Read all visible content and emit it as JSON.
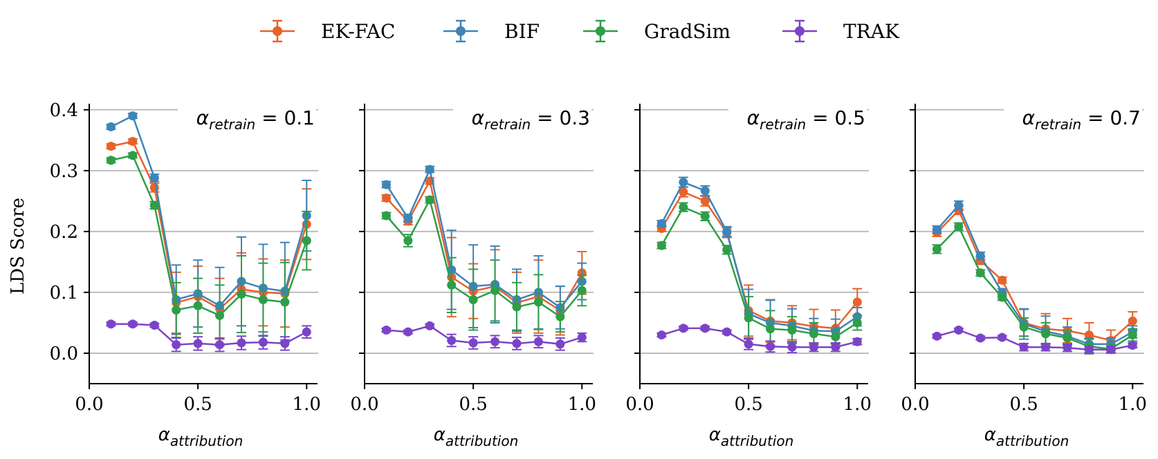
{
  "chart_data": {
    "type": "line",
    "ylabel": "LDS Score",
    "ylim": [
      -0.05,
      0.41
    ],
    "yticks": [
      0.0,
      0.1,
      0.2,
      0.3,
      0.4
    ],
    "ytick_labels": [
      "0.0",
      "0.1",
      "0.2",
      "0.3",
      "0.4"
    ],
    "xlim": [
      0.0,
      1.05
    ],
    "xticks": [
      0.0,
      0.5,
      1.0
    ],
    "xtick_labels": [
      "0.0",
      "0.5",
      "1.0"
    ],
    "xlabel": {
      "base": "α",
      "sub": "attribution"
    },
    "x": [
      0.1,
      0.2,
      0.3,
      0.4,
      0.5,
      0.6,
      0.7,
      0.8,
      0.9,
      1.0
    ],
    "legend": {
      "position": "top-center",
      "entries": [
        {
          "name": "EK-FAC",
          "color": "#e8622a"
        },
        {
          "name": "BIF",
          "color": "#3d84b8"
        },
        {
          "name": "GradSim",
          "color": "#2e9e48"
        },
        {
          "name": "TRAK",
          "color": "#7b44c8"
        }
      ]
    },
    "panels": [
      {
        "annotation": {
          "base": "α",
          "sub": "retrain",
          "eq": " = 0.1"
        },
        "series": [
          {
            "name": "EK-FAC",
            "values": [
              0.34,
              0.348,
              0.272,
              0.083,
              0.093,
              0.073,
              0.105,
              0.1,
              0.098,
              0.212
            ],
            "errors": [
              0.004,
              0.004,
              0.007,
              0.05,
              0.05,
              0.05,
              0.06,
              0.055,
              0.055,
              0.058
            ]
          },
          {
            "name": "BIF",
            "values": [
              0.372,
              0.39,
              0.288,
              0.088,
              0.098,
              0.078,
              0.118,
              0.107,
              0.102,
              0.226
            ],
            "errors": [
              0.004,
              0.004,
              0.006,
              0.057,
              0.055,
              0.063,
              0.073,
              0.072,
              0.08,
              0.058
            ]
          },
          {
            "name": "GradSim",
            "values": [
              0.317,
              0.325,
              0.243,
              0.071,
              0.078,
              0.062,
              0.097,
              0.088,
              0.084,
              0.185
            ],
            "errors": [
              0.004,
              0.004,
              0.006,
              0.045,
              0.045,
              0.05,
              0.063,
              0.06,
              0.065,
              0.048
            ]
          },
          {
            "name": "TRAK",
            "values": [
              0.048,
              0.048,
              0.046,
              0.014,
              0.016,
              0.014,
              0.017,
              0.018,
              0.016,
              0.035
            ],
            "errors": [
              0.003,
              0.003,
              0.003,
              0.011,
              0.011,
              0.011,
              0.011,
              0.011,
              0.011,
              0.01
            ]
          }
        ]
      },
      {
        "annotation": {
          "base": "α",
          "sub": "retrain",
          "eq": " = 0.3"
        },
        "series": [
          {
            "name": "EK-FAC",
            "values": [
              0.255,
              0.217,
              0.283,
              0.125,
              0.102,
              0.11,
              0.083,
              0.093,
              0.07,
              0.132
            ],
            "errors": [
              0.005,
              0.006,
              0.005,
              0.065,
              0.045,
              0.06,
              0.05,
              0.06,
              0.04,
              0.035
            ]
          },
          {
            "name": "BIF",
            "values": [
              0.277,
              0.222,
              0.302,
              0.137,
              0.11,
              0.113,
              0.088,
              0.1,
              0.075,
              0.118
            ],
            "errors": [
              0.005,
              0.006,
              0.005,
              0.065,
              0.068,
              0.063,
              0.05,
              0.06,
              0.035,
              0.03
            ]
          },
          {
            "name": "GradSim",
            "values": [
              0.226,
              0.185,
              0.252,
              0.112,
              0.088,
              0.103,
              0.076,
              0.084,
              0.06,
              0.103
            ],
            "errors": [
              0.005,
              0.01,
              0.005,
              0.045,
              0.05,
              0.05,
              0.04,
              0.045,
              0.025,
              0.025
            ]
          },
          {
            "name": "TRAK",
            "values": [
              0.038,
              0.035,
              0.045,
              0.021,
              0.017,
              0.019,
              0.016,
              0.019,
              0.015,
              0.026
            ],
            "errors": [
              0.003,
              0.003,
              0.003,
              0.01,
              0.01,
              0.01,
              0.01,
              0.01,
              0.01,
              0.007
            ]
          }
        ]
      },
      {
        "annotation": {
          "base": "α",
          "sub": "retrain",
          "eq": " = 0.5"
        },
        "series": [
          {
            "name": "EK-FAC",
            "values": [
              0.205,
              0.265,
              0.25,
              0.198,
              0.07,
              0.053,
              0.05,
              0.044,
              0.041,
              0.084
            ],
            "errors": [
              0.005,
              0.008,
              0.008,
              0.008,
              0.042,
              0.035,
              0.028,
              0.028,
              0.03,
              0.022
            ]
          },
          {
            "name": "BIF",
            "values": [
              0.213,
              0.281,
              0.267,
              0.2,
              0.065,
              0.05,
              0.045,
              0.037,
              0.036,
              0.06
            ],
            "errors": [
              0.005,
              0.008,
              0.008,
              0.008,
              0.04,
              0.037,
              0.028,
              0.02,
              0.02,
              0.015
            ]
          },
          {
            "name": "GradSim",
            "values": [
              0.177,
              0.24,
              0.225,
              0.17,
              0.058,
              0.04,
              0.038,
              0.032,
              0.027,
              0.05
            ],
            "errors": [
              0.005,
              0.007,
              0.007,
              0.007,
              0.035,
              0.03,
              0.022,
              0.018,
              0.012,
              0.012
            ]
          },
          {
            "name": "TRAK",
            "values": [
              0.03,
              0.041,
              0.041,
              0.035,
              0.015,
              0.011,
              0.01,
              0.01,
              0.01,
              0.019
            ],
            "errors": [
              0.003,
              0.003,
              0.003,
              0.003,
              0.009,
              0.009,
              0.009,
              0.007,
              0.007,
              0.005
            ]
          }
        ]
      },
      {
        "annotation": {
          "base": "α",
          "sub": "retrain",
          "eq": " = 0.7"
        },
        "series": [
          {
            "name": "EK-FAC",
            "values": [
              0.198,
              0.235,
              0.152,
              0.12,
              0.05,
              0.04,
              0.037,
              0.03,
              0.021,
              0.053
            ],
            "errors": [
              0.006,
              0.007,
              0.006,
              0.005,
              0.022,
              0.025,
              0.02,
              0.02,
              0.017,
              0.015
            ]
          },
          {
            "name": "BIF",
            "values": [
              0.203,
              0.243,
              0.16,
              0.1,
              0.048,
              0.036,
              0.028,
              0.015,
              0.015,
              0.035
            ],
            "errors": [
              0.006,
              0.007,
              0.006,
              0.006,
              0.025,
              0.025,
              0.015,
              0.01,
              0.01,
              0.01
            ]
          },
          {
            "name": "GradSim",
            "values": [
              0.171,
              0.208,
              0.132,
              0.092,
              0.043,
              0.032,
              0.025,
              0.011,
              0.007,
              0.03
            ],
            "errors": [
              0.007,
              0.006,
              0.005,
              0.005,
              0.015,
              0.018,
              0.012,
              0.012,
              0.007,
              0.01
            ]
          },
          {
            "name": "TRAK",
            "values": [
              0.028,
              0.038,
              0.025,
              0.026,
              0.01,
              0.01,
              0.009,
              0.006,
              0.006,
              0.013
            ],
            "errors": [
              0.003,
              0.003,
              0.003,
              0.003,
              0.006,
              0.006,
              0.006,
              0.005,
              0.005,
              0.004
            ]
          }
        ]
      }
    ]
  }
}
